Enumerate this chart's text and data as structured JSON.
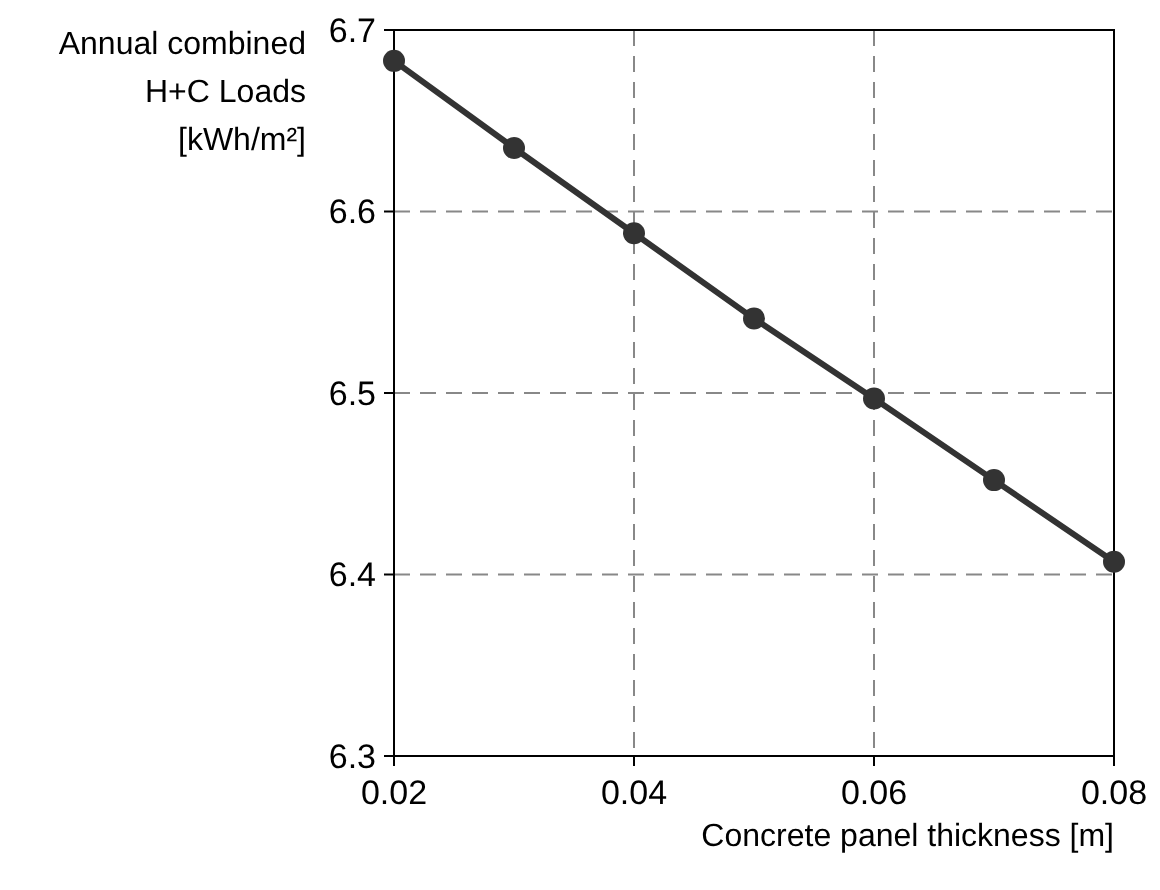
{
  "chart_data": {
    "type": "line",
    "xlabel": "Concrete panel thickness [m]",
    "ylabel": "Annual combined\nH+C Loads\n[kWh/m²]",
    "x": [
      0.02,
      0.03,
      0.04,
      0.05,
      0.06,
      0.07,
      0.08
    ],
    "series": [
      {
        "color": "#333333",
        "values": [
          6.683,
          6.635,
          6.588,
          6.541,
          6.497,
          6.452,
          6.407
        ]
      }
    ],
    "xlim": [
      0.02,
      0.08
    ],
    "xticks": [
      0.02,
      0.04,
      0.06,
      0.08
    ],
    "ylim": [
      6.3,
      6.7
    ],
    "yticks": [
      6.3,
      6.4,
      6.5,
      6.6,
      6.7
    ],
    "grid": true,
    "marker": "circle",
    "line_style": "solid"
  }
}
